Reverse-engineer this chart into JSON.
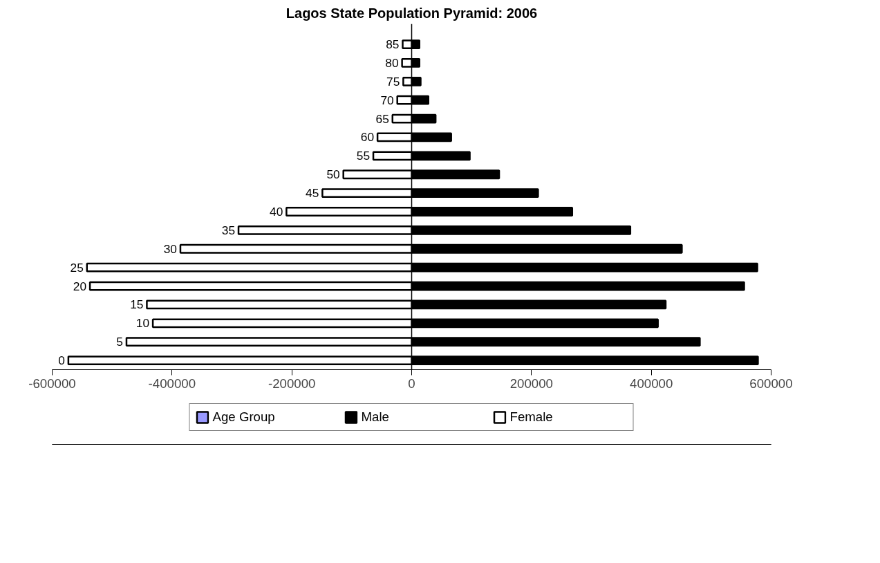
{
  "chart_data": {
    "type": "bar",
    "orientation": "horizontal",
    "title": "Lagos State Population Pyramid: 2006",
    "categories": [
      "85",
      "80",
      "75",
      "70",
      "65",
      "60",
      "55",
      "50",
      "45",
      "40",
      "35",
      "30",
      "25",
      "20",
      "15",
      "10",
      "5",
      "0"
    ],
    "series": [
      {
        "name": "Age Group",
        "color": "#9999ff",
        "values": [
          null,
          null,
          null,
          null,
          null,
          null,
          null,
          null,
          null,
          null,
          null,
          null,
          null,
          null,
          null,
          null,
          null,
          null
        ]
      },
      {
        "name": "Male",
        "color": "#000000",
        "values": [
          13000,
          13000,
          15000,
          28000,
          40000,
          66000,
          97000,
          146000,
          211000,
          268000,
          365000,
          451000,
          577000,
          555000,
          424000,
          411000,
          481000,
          578000
        ]
      },
      {
        "name": "Female",
        "color": "#ffffff",
        "values": [
          -15000,
          -16000,
          -14000,
          -24000,
          -32000,
          -57000,
          -64000,
          -114000,
          -149000,
          -209000,
          -289000,
          -386000,
          -542000,
          -537000,
          -442000,
          -432000,
          -476000,
          -573000
        ]
      }
    ],
    "xlim": [
      -600000,
      600000
    ],
    "xticks": [
      -600000,
      -400000,
      -200000,
      0,
      200000,
      400000,
      600000
    ],
    "grid": false,
    "legend": "bottom",
    "stacked": true
  }
}
